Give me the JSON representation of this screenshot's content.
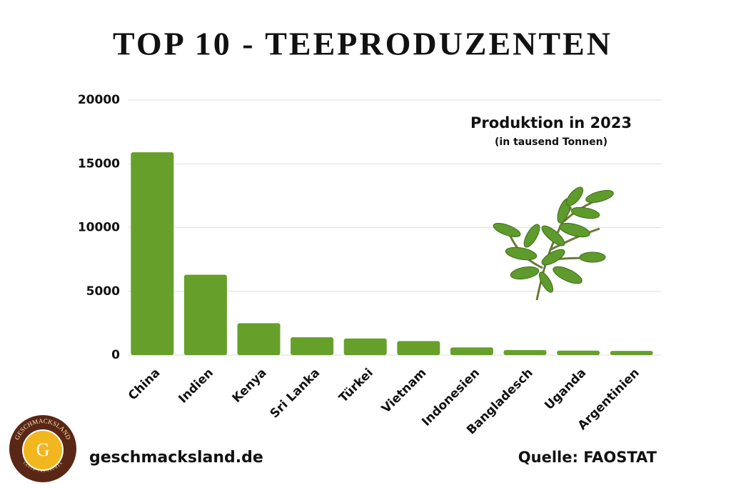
{
  "chart_data": {
    "type": "bar",
    "title": "TOP 10 - TEEPRODUZENTEN",
    "annotation": "Produktion in 2023",
    "annotation_subtitle": "(in tausend Tonnen)",
    "categories": [
      "China",
      "Indien",
      "Kenya",
      "Sri Lanka",
      "Türkei",
      "Vietnam",
      "Indonesien",
      "Bangladesch",
      "Uganda",
      "Argentinien"
    ],
    "values": [
      15900,
      6300,
      2500,
      1400,
      1300,
      1100,
      600,
      400,
      350,
      330
    ],
    "color": "#66a02a",
    "ylim": [
      0,
      20000
    ],
    "yticks": [
      0,
      5000,
      10000,
      15000,
      20000
    ],
    "grid": true,
    "website": "geschmacksland.de",
    "source": "Quelle: FAOSTAT",
    "logo": {
      "name": "GESCHMACKSLAND",
      "letter": "G",
      "tagline": "TASTE TREASURES"
    }
  }
}
